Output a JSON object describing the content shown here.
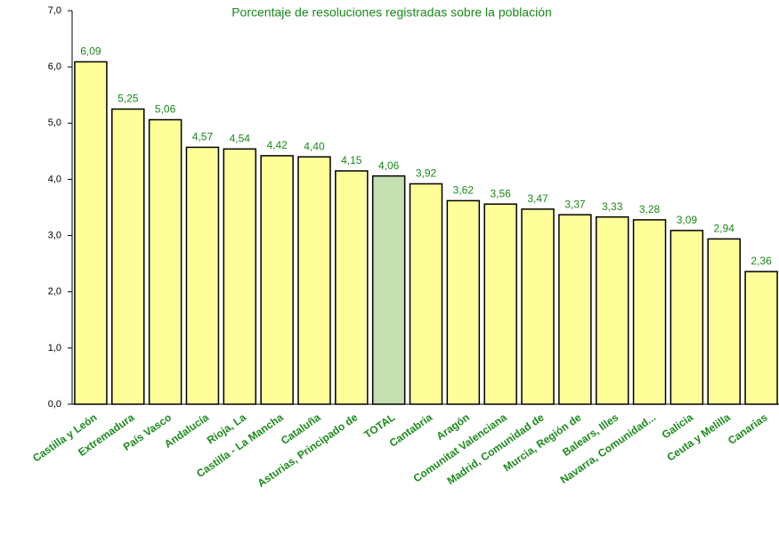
{
  "chart_data": {
    "type": "bar",
    "title": "Porcentaje de resoluciones registradas sobre la población",
    "categories": [
      "Castilla y León",
      "Extremadura",
      "País Vasco",
      "Andalucía",
      "Rioja, La",
      "Castilla - La Mancha",
      "Cataluña",
      "Asturias, Principado de",
      "TOTAL",
      "Cantabria",
      "Aragón",
      "Comunitat Valenciana",
      "Madrid, Comunidad de",
      "Murcia, Región de",
      "Balears, Illes",
      "Navarra, Comunidad...",
      "Galicia",
      "Ceuta y Melilla",
      "Canarias"
    ],
    "values": [
      6.09,
      5.25,
      5.06,
      4.57,
      4.54,
      4.42,
      4.4,
      4.15,
      4.06,
      3.92,
      3.62,
      3.56,
      3.47,
      3.37,
      3.33,
      3.28,
      3.09,
      2.94,
      2.36
    ],
    "value_labels": [
      "6,09",
      "5,25",
      "5,06",
      "4,57",
      "4,54",
      "4,42",
      "4,40",
      "4,15",
      "4,06",
      "3,92",
      "3,62",
      "3,56",
      "3,47",
      "3,37",
      "3,33",
      "3,28",
      "3,09",
      "2,94",
      "2,36"
    ],
    "colors": [
      "#ffff99",
      "#ffff99",
      "#ffff99",
      "#ffff99",
      "#ffff99",
      "#ffff99",
      "#ffff99",
      "#ffff99",
      "#c4dfb0",
      "#ffff99",
      "#ffff99",
      "#ffff99",
      "#ffff99",
      "#ffff99",
      "#ffff99",
      "#ffff99",
      "#ffff99",
      "#ffff99",
      "#ffff99"
    ],
    "ylim": [
      0,
      7
    ],
    "yticks": [
      {
        "value": 0,
        "label": "0,0"
      },
      {
        "value": 1,
        "label": "1,0"
      },
      {
        "value": 2,
        "label": "2,0"
      },
      {
        "value": 3,
        "label": "3,0"
      },
      {
        "value": 4,
        "label": "4,0"
      },
      {
        "value": 5,
        "label": "5,0"
      },
      {
        "value": 6,
        "label": "6,0"
      },
      {
        "value": 7,
        "label": "7,0"
      }
    ],
    "grid": false
  }
}
